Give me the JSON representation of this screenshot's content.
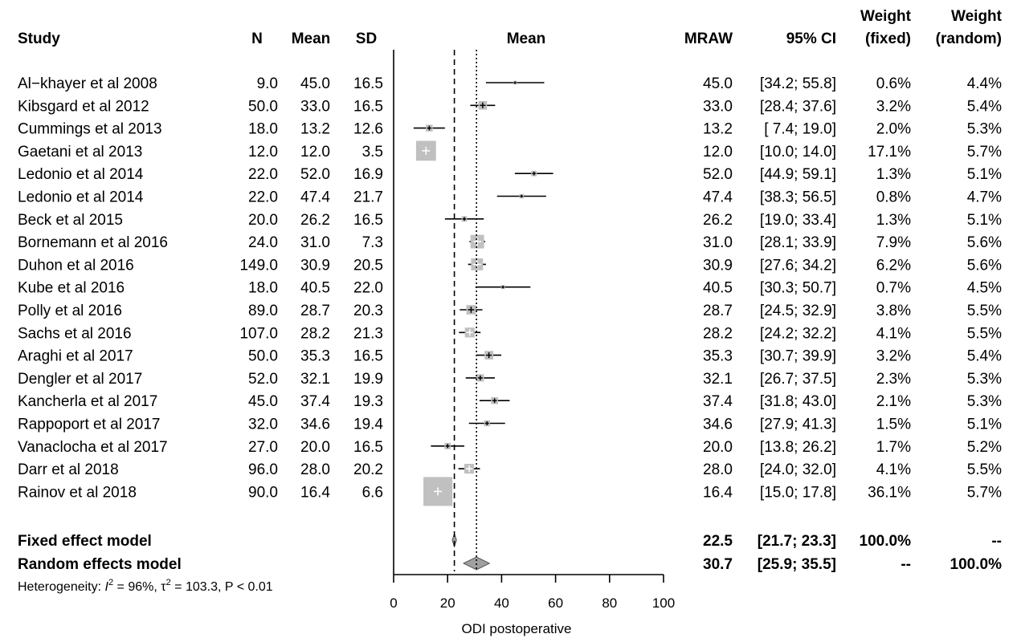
{
  "chart_data": {
    "type": "forest",
    "headers": {
      "study": "Study",
      "n": "N",
      "mean": "Mean",
      "sd": "SD",
      "plot_mean": "Mean",
      "mraw": "MRAW",
      "ci": "95% CI",
      "weight_fixed": [
        "Weight",
        "(fixed)"
      ],
      "weight_random": [
        "Weight",
        "(random)"
      ]
    },
    "studies": [
      {
        "name": "Al−khayer et al 2008",
        "n": "9.0",
        "mean_str": "45.0",
        "sd": "16.5",
        "mraw": "45.0",
        "ci": "[34.2; 55.8]",
        "wf": "0.6%",
        "wr": "4.4%",
        "est": 45.0,
        "lo": 34.2,
        "hi": 55.8,
        "wf_val": 0.6
      },
      {
        "name": "Kibsgard et al 2012",
        "n": "50.0",
        "mean_str": "33.0",
        "sd": "16.5",
        "mraw": "33.0",
        "ci": "[28.4; 37.6]",
        "wf": "3.2%",
        "wr": "5.4%",
        "est": 33.0,
        "lo": 28.4,
        "hi": 37.6,
        "wf_val": 3.2
      },
      {
        "name": "Cummings et al 2013",
        "n": "18.0",
        "mean_str": "13.2",
        "sd": "12.6",
        "mraw": "13.2",
        "ci": "[ 7.4; 19.0]",
        "wf": "2.0%",
        "wr": "5.3%",
        "est": 13.2,
        "lo": 7.4,
        "hi": 19.0,
        "wf_val": 2.0
      },
      {
        "name": "Gaetani et al 2013",
        "n": "12.0",
        "mean_str": "12.0",
        "sd": "3.5",
        "mraw": "12.0",
        "ci": "[10.0; 14.0]",
        "wf": "17.1%",
        "wr": "5.7%",
        "est": 12.0,
        "lo": 10.0,
        "hi": 14.0,
        "wf_val": 17.1
      },
      {
        "name": "Ledonio et al 2014",
        "n": "22.0",
        "mean_str": "52.0",
        "sd": "16.9",
        "mraw": "52.0",
        "ci": "[44.9; 59.1]",
        "wf": "1.3%",
        "wr": "5.1%",
        "est": 52.0,
        "lo": 44.9,
        "hi": 59.1,
        "wf_val": 1.3
      },
      {
        "name": "Ledonio et al 2014",
        "n": "22.0",
        "mean_str": "47.4",
        "sd": "21.7",
        "mraw": "47.4",
        "ci": "[38.3; 56.5]",
        "wf": "0.8%",
        "wr": "4.7%",
        "est": 47.4,
        "lo": 38.3,
        "hi": 56.5,
        "wf_val": 0.8
      },
      {
        "name": "Beck et al 2015",
        "n": "20.0",
        "mean_str": "26.2",
        "sd": "16.5",
        "mraw": "26.2",
        "ci": "[19.0; 33.4]",
        "wf": "1.3%",
        "wr": "5.1%",
        "est": 26.2,
        "lo": 19.0,
        "hi": 33.4,
        "wf_val": 1.3
      },
      {
        "name": "Bornemann et al 2016",
        "n": "24.0",
        "mean_str": "31.0",
        "sd": "7.3",
        "mraw": "31.0",
        "ci": "[28.1; 33.9]",
        "wf": "7.9%",
        "wr": "5.6%",
        "est": 31.0,
        "lo": 28.1,
        "hi": 33.9,
        "wf_val": 7.9
      },
      {
        "name": "Duhon et al 2016",
        "n": "149.0",
        "mean_str": "30.9",
        "sd": "20.5",
        "mraw": "30.9",
        "ci": "[27.6; 34.2]",
        "wf": "6.2%",
        "wr": "5.6%",
        "est": 30.9,
        "lo": 27.6,
        "hi": 34.2,
        "wf_val": 6.2
      },
      {
        "name": "Kube et al 2016",
        "n": "18.0",
        "mean_str": "40.5",
        "sd": "22.0",
        "mraw": "40.5",
        "ci": "[30.3; 50.7]",
        "wf": "0.7%",
        "wr": "4.5%",
        "est": 40.5,
        "lo": 30.3,
        "hi": 50.7,
        "wf_val": 0.7
      },
      {
        "name": "Polly et al 2016",
        "n": "89.0",
        "mean_str": "28.7",
        "sd": "20.3",
        "mraw": "28.7",
        "ci": "[24.5; 32.9]",
        "wf": "3.8%",
        "wr": "5.5%",
        "est": 28.7,
        "lo": 24.5,
        "hi": 32.9,
        "wf_val": 3.8
      },
      {
        "name": "Sachs et al 2016",
        "n": "107.0",
        "mean_str": "28.2",
        "sd": "21.3",
        "mraw": "28.2",
        "ci": "[24.2; 32.2]",
        "wf": "4.1%",
        "wr": "5.5%",
        "est": 28.2,
        "lo": 24.2,
        "hi": 32.2,
        "wf_val": 4.1
      },
      {
        "name": "Araghi et al 2017",
        "n": "50.0",
        "mean_str": "35.3",
        "sd": "16.5",
        "mraw": "35.3",
        "ci": "[30.7; 39.9]",
        "wf": "3.2%",
        "wr": "5.4%",
        "est": 35.3,
        "lo": 30.7,
        "hi": 39.9,
        "wf_val": 3.2
      },
      {
        "name": "Dengler et al 2017",
        "n": "52.0",
        "mean_str": "32.1",
        "sd": "19.9",
        "mraw": "32.1",
        "ci": "[26.7; 37.5]",
        "wf": "2.3%",
        "wr": "5.3%",
        "est": 32.1,
        "lo": 26.7,
        "hi": 37.5,
        "wf_val": 2.3
      },
      {
        "name": "Kancherla et al 2017",
        "n": "45.0",
        "mean_str": "37.4",
        "sd": "19.3",
        "mraw": "37.4",
        "ci": "[31.8; 43.0]",
        "wf": "2.1%",
        "wr": "5.3%",
        "est": 37.4,
        "lo": 31.8,
        "hi": 43.0,
        "wf_val": 2.1
      },
      {
        "name": "Rappoport et al 2017",
        "n": "32.0",
        "mean_str": "34.6",
        "sd": "19.4",
        "mraw": "34.6",
        "ci": "[27.9; 41.3]",
        "wf": "1.5%",
        "wr": "5.1%",
        "est": 34.6,
        "lo": 27.9,
        "hi": 41.3,
        "wf_val": 1.5
      },
      {
        "name": "Vanaclocha et al 2017",
        "n": "27.0",
        "mean_str": "20.0",
        "sd": "16.5",
        "mraw": "20.0",
        "ci": "[13.8; 26.2]",
        "wf": "1.7%",
        "wr": "5.2%",
        "est": 20.0,
        "lo": 13.8,
        "hi": 26.2,
        "wf_val": 1.7
      },
      {
        "name": "Darr et al 2018",
        "n": "96.0",
        "mean_str": "28.0",
        "sd": "20.2",
        "mraw": "28.0",
        "ci": "[24.0; 32.0]",
        "wf": "4.1%",
        "wr": "5.5%",
        "est": 28.0,
        "lo": 24.0,
        "hi": 32.0,
        "wf_val": 4.1
      },
      {
        "name": "Rainov et al 2018",
        "n": "90.0",
        "mean_str": "16.4",
        "sd": "6.6",
        "mraw": "16.4",
        "ci": "[15.0; 17.8]",
        "wf": "36.1%",
        "wr": "5.7%",
        "est": 16.4,
        "lo": 15.0,
        "hi": 17.8,
        "wf_val": 36.1
      }
    ],
    "summaries": [
      {
        "name": "Fixed effect model",
        "mraw": "22.5",
        "ci": "[21.7; 23.3]",
        "wf": "100.0%",
        "wr": "--",
        "est": 22.5,
        "lo": 21.7,
        "hi": 23.3
      },
      {
        "name": "Random effects model",
        "mraw": "30.7",
        "ci": "[25.9; 35.5]",
        "wf": "--",
        "wr": "100.0%",
        "est": 30.7,
        "lo": 25.9,
        "hi": 35.5
      }
    ],
    "heterogeneity": {
      "prefix": "Heterogeneity: ",
      "i2_sym": "I",
      "i2_val": " = 96%, ",
      "tau_sym": "τ",
      "tau_val": " = 103.3, P < 0.01",
      "sup": "2"
    },
    "xaxis": {
      "label": "ODI postoperative",
      "ticks": [
        0,
        20,
        40,
        60,
        80,
        100
      ],
      "range": [
        0,
        100
      ]
    },
    "colors": {
      "ink": "#000000",
      "box": "#c0c0c0",
      "diamond": "#a0a0a0"
    }
  }
}
